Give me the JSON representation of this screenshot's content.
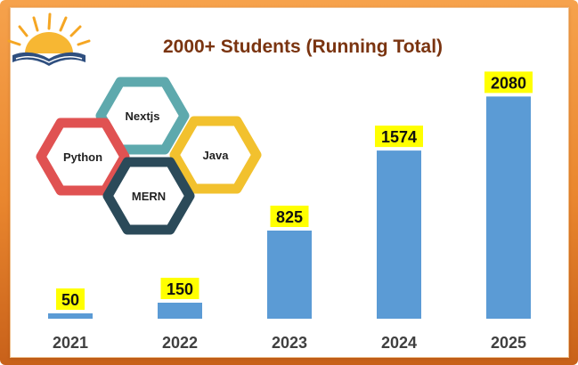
{
  "chart_data": {
    "type": "bar",
    "title": "2000+ Students (Running Total)",
    "xlabel": "",
    "ylabel": "",
    "categories": [
      "2021",
      "2022",
      "2023",
      "2024",
      "2025"
    ],
    "values": [
      50,
      150,
      825,
      1574,
      2080
    ],
    "ylim": [
      0,
      2250
    ],
    "grid": false,
    "legend": "none",
    "bar_color": "#5b9bd5",
    "label_background": "#ffff00"
  },
  "decor": {
    "logo_icon": "sunrise-book-icon",
    "hexagons": [
      {
        "label": "Nextjs",
        "color": "#5ea9ad"
      },
      {
        "label": "Python",
        "color": "#e05252"
      },
      {
        "label": "Java",
        "color": "#f2c12e"
      },
      {
        "label": "MERN",
        "color": "#2b4a59"
      }
    ]
  },
  "colors": {
    "frame": "#e9862e",
    "title": "#7a3410"
  }
}
